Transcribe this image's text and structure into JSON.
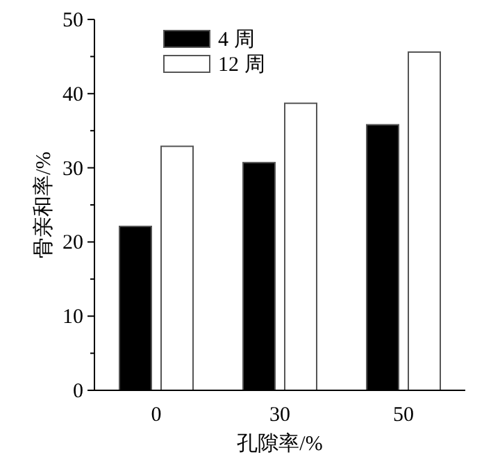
{
  "chart_data": {
    "type": "bar",
    "xlabel": "孔隙率/%",
    "ylabel": "骨亲和率/%",
    "categories": [
      "0",
      "30",
      "50"
    ],
    "series": [
      {
        "name": "4 周",
        "color": "#000000",
        "values": [
          22.1,
          30.7,
          35.8
        ]
      },
      {
        "name": "12 周",
        "color": "#ffffff",
        "values": [
          32.9,
          38.7,
          45.6
        ]
      }
    ],
    "ylim": [
      0,
      50
    ],
    "yticks": [
      0,
      {
        "value": 5,
        "label": null
      },
      10,
      {
        "value": 15,
        "label": null
      },
      20,
      {
        "value": 25,
        "label": null
      },
      30,
      {
        "value": 35,
        "label": null
      },
      40,
      {
        "value": 45,
        "label": null
      },
      50
    ],
    "legend": "top left",
    "grid": false
  }
}
